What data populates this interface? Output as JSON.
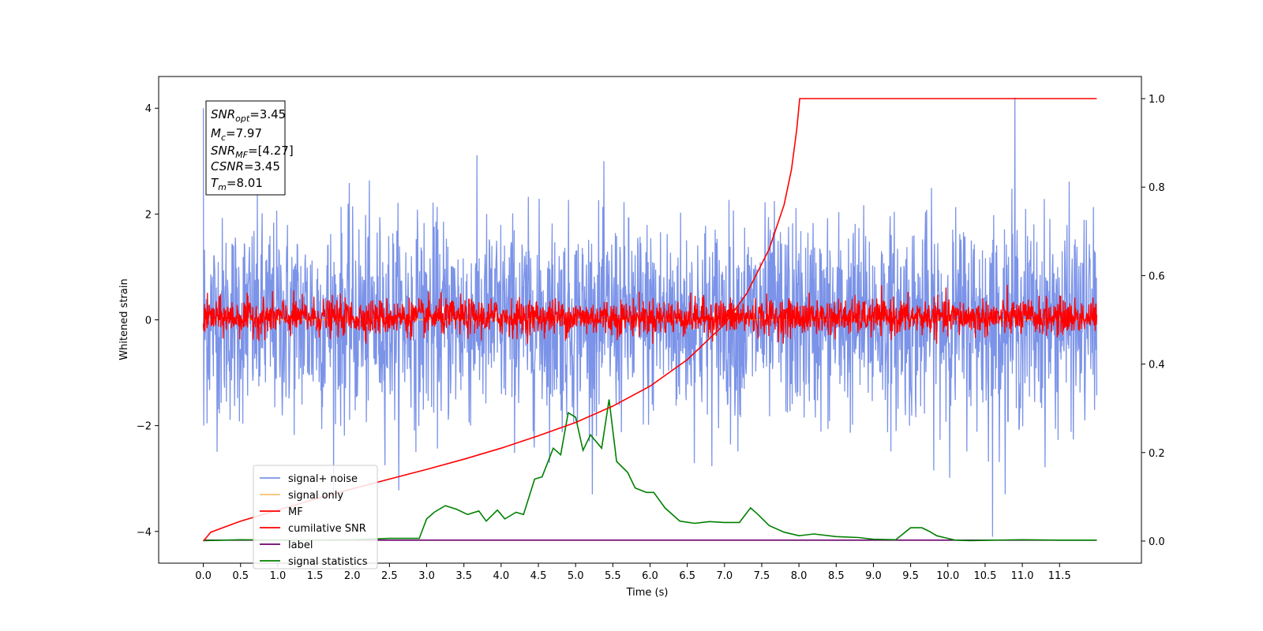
{
  "chart_data": {
    "type": "line",
    "title": "",
    "xlabel": "Time (s)",
    "ylabel": "Whitened strain",
    "xlim": [
      -0.6,
      12.6
    ],
    "ylim": [
      -4.6,
      4.6
    ],
    "y2lim": [
      -0.05,
      1.05
    ],
    "x_ticks": [
      "0.0",
      "0.5",
      "1.0",
      "1.5",
      "2.0",
      "2.5",
      "3.0",
      "3.5",
      "4.0",
      "4.5",
      "5.0",
      "5.5",
      "6.0",
      "6.5",
      "7.0",
      "7.5",
      "8.0",
      "8.5",
      "9.0",
      "9.5",
      "10.0",
      "10.5",
      "11.0",
      "11.5"
    ],
    "y_ticks": [
      "4",
      "2",
      "0",
      "−2",
      "−4"
    ],
    "y2_ticks": [
      "1.0",
      "0.8",
      "0.6",
      "0.4",
      "0.2",
      "0.0"
    ],
    "grid": false,
    "legend_position": "lower-left",
    "annotation": {
      "snr_opt": "=3.45",
      "mc": "=7.97",
      "snr_mf": "=[4.27]",
      "csnr": "=3.45",
      "tm": "=8.01"
    },
    "series": [
      {
        "name": "signal+ noise",
        "color": "#7b93e8",
        "axis": "left",
        "description_values": {
          "x_range": [
            0,
            12
          ],
          "approx_range": [
            -2.8,
            2.8
          ],
          "spikes": [
            [
              0.0,
              4.0
            ],
            [
              10.9,
              4.2
            ],
            [
              10.6,
              -4.1
            ]
          ]
        }
      },
      {
        "name": "signal only",
        "color": "#f5c071",
        "axis": "left",
        "values": [
          [
            0,
            0
          ],
          [
            12,
            0
          ]
        ]
      },
      {
        "name": "MF",
        "color": "#ff0000",
        "axis": "left",
        "description_values": {
          "x_range": [
            0,
            12
          ],
          "approx_range": [
            -0.45,
            0.7
          ]
        }
      },
      {
        "name": "cumilative SNR",
        "color": "#ff0000",
        "axis": "right",
        "x": [
          0.0,
          0.1,
          0.5,
          1.0,
          1.5,
          2.0,
          2.5,
          3.0,
          3.5,
          4.0,
          4.5,
          5.0,
          5.5,
          6.0,
          6.5,
          7.0,
          7.3,
          7.6,
          7.8,
          7.9,
          7.97,
          8.01,
          8.5,
          9.0,
          10.0,
          11.0,
          12.0
        ],
        "y": [
          0.0,
          0.02,
          0.045,
          0.07,
          0.095,
          0.118,
          0.14,
          0.162,
          0.185,
          0.21,
          0.238,
          0.268,
          0.305,
          0.35,
          0.41,
          0.49,
          0.56,
          0.66,
          0.76,
          0.84,
          0.93,
          1.0,
          1.0,
          1.0,
          1.0,
          1.0,
          1.0
        ]
      },
      {
        "name": "label",
        "color": "#6b006b",
        "axis": "right",
        "x": [
          0,
          12
        ],
        "y": [
          0.002,
          0.002
        ]
      },
      {
        "name": "signal statistics",
        "color": "#008000",
        "axis": "right",
        "x": [
          0.0,
          0.5,
          1.0,
          1.5,
          2.0,
          2.5,
          2.9,
          3.0,
          3.1,
          3.25,
          3.4,
          3.55,
          3.7,
          3.8,
          3.95,
          4.05,
          4.2,
          4.3,
          4.45,
          4.55,
          4.7,
          4.8,
          4.9,
          5.0,
          5.1,
          5.2,
          5.35,
          5.45,
          5.55,
          5.7,
          5.8,
          5.95,
          6.05,
          6.2,
          6.4,
          6.6,
          6.8,
          7.0,
          7.2,
          7.35,
          7.45,
          7.6,
          7.8,
          8.0,
          8.2,
          8.5,
          8.8,
          9.0,
          9.3,
          9.5,
          9.65,
          9.75,
          9.85,
          9.95,
          10.1,
          10.3,
          10.6,
          11.0,
          11.5,
          12.0
        ],
        "y": [
          0.001,
          0.003,
          0.002,
          0.002,
          0.003,
          0.006,
          0.006,
          0.05,
          0.065,
          0.08,
          0.072,
          0.06,
          0.068,
          0.045,
          0.07,
          0.05,
          0.065,
          0.06,
          0.14,
          0.145,
          0.21,
          0.195,
          0.29,
          0.28,
          0.205,
          0.24,
          0.21,
          0.32,
          0.18,
          0.155,
          0.12,
          0.11,
          0.11,
          0.075,
          0.045,
          0.04,
          0.044,
          0.042,
          0.042,
          0.075,
          0.06,
          0.035,
          0.02,
          0.012,
          0.016,
          0.01,
          0.008,
          0.004,
          0.003,
          0.03,
          0.03,
          0.022,
          0.012,
          0.008,
          0.002,
          0.001,
          0.002,
          0.003,
          0.002,
          0.002
        ]
      }
    ]
  }
}
